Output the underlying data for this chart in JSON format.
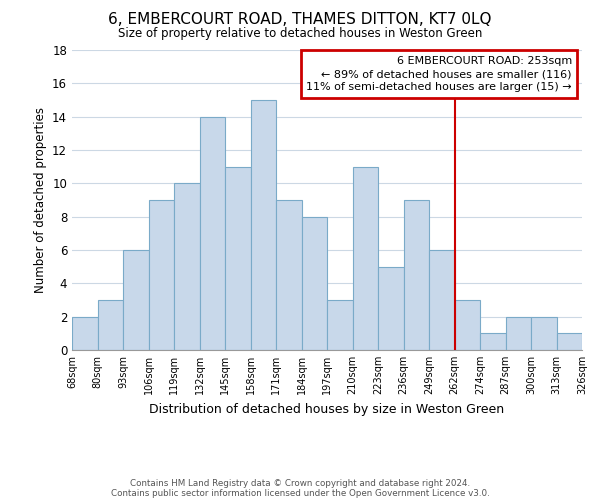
{
  "title": "6, EMBERCOURT ROAD, THAMES DITTON, KT7 0LQ",
  "subtitle": "Size of property relative to detached houses in Weston Green",
  "xlabel": "Distribution of detached houses by size in Weston Green",
  "ylabel": "Number of detached properties",
  "footer1": "Contains HM Land Registry data © Crown copyright and database right 2024.",
  "footer2": "Contains public sector information licensed under the Open Government Licence v3.0.",
  "bin_labels": [
    "68sqm",
    "80sqm",
    "93sqm",
    "106sqm",
    "119sqm",
    "132sqm",
    "145sqm",
    "158sqm",
    "171sqm",
    "184sqm",
    "197sqm",
    "210sqm",
    "223sqm",
    "236sqm",
    "249sqm",
    "262sqm",
    "274sqm",
    "287sqm",
    "300sqm",
    "313sqm",
    "326sqm"
  ],
  "bar_heights": [
    2,
    3,
    6,
    9,
    10,
    14,
    11,
    15,
    9,
    8,
    3,
    11,
    5,
    9,
    6,
    3,
    1,
    2,
    2,
    1
  ],
  "bar_color": "#c8d8ea",
  "bar_edge_color": "#7aaac8",
  "grid_color": "#ccd8e4",
  "vline_color": "#cc0000",
  "annotation_title": "6 EMBERCOURT ROAD: 253sqm",
  "annotation_line1": "← 89% of detached houses are smaller (116)",
  "annotation_line2": "11% of semi-detached houses are larger (15) →",
  "annotation_box_color": "#cc0000",
  "ylim": [
    0,
    18
  ],
  "yticks": [
    0,
    2,
    4,
    6,
    8,
    10,
    12,
    14,
    16,
    18
  ]
}
